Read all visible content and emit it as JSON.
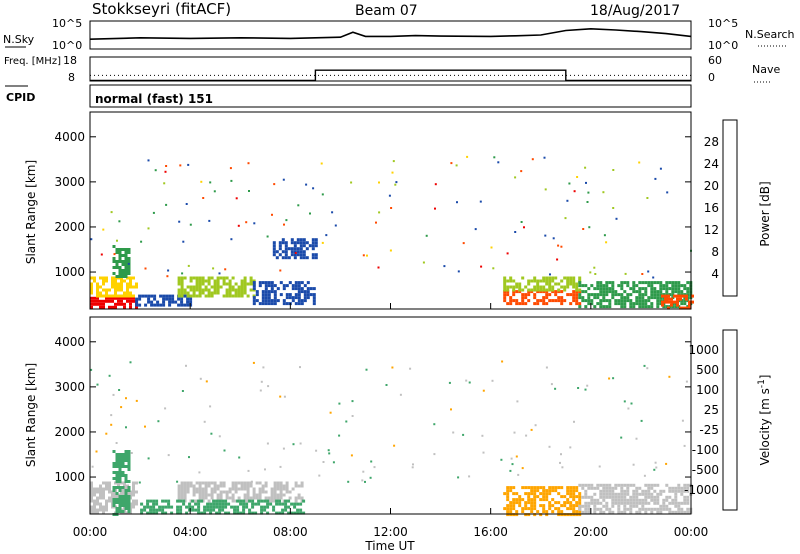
{
  "header": {
    "station": "Stokkseyri (fitACF)",
    "beam": "Beam 07",
    "date": "18/Aug/2017"
  },
  "chart_data": [
    {
      "type": "line",
      "name": "noise-panel",
      "left_label": "N.Sky",
      "right_label": "N.Search",
      "left_ticks": [
        "10^5",
        "10^0"
      ],
      "right_ticks": [
        "10^5",
        "10^0"
      ],
      "x": [
        "00:00",
        "02:00",
        "04:00",
        "06:00",
        "08:00",
        "09:00",
        "10:00",
        "10:30",
        "11:00",
        "12:00",
        "13:00",
        "14:00",
        "16:00",
        "17:00",
        "18:00",
        "19:00",
        "20:00",
        "21:00",
        "22:00",
        "23:00",
        "24:00"
      ],
      "series": [
        {
          "values": [
            0.35,
            0.4,
            0.38,
            0.4,
            0.38,
            0.4,
            0.42,
            0.6,
            0.45,
            0.45,
            0.48,
            0.46,
            0.45,
            0.47,
            0.5,
            0.66,
            0.72,
            0.68,
            0.62,
            0.55,
            0.45
          ]
        }
      ]
    },
    {
      "type": "line",
      "name": "frequency-panel",
      "left_label": "Freq. [MHz]",
      "right_label": "Nave",
      "left_ticks": [
        "18",
        "8"
      ],
      "right_ticks": [
        "60",
        "0"
      ],
      "x": [
        "00:00",
        "09:00",
        "09:00",
        "19:00",
        "19:00",
        "24:00"
      ],
      "series": [
        {
          "values": [
            8.2,
            8.2,
            12.5,
            12.5,
            8.2,
            8.2
          ]
        },
        {
          "values": [
            14,
            14,
            14,
            14,
            14,
            14
          ],
          "style": "dotted"
        }
      ]
    },
    {
      "type": "text",
      "name": "cpid-panel",
      "label": "CPID",
      "value": "normal (fast) 151"
    },
    {
      "type": "heatmap",
      "name": "power-panel",
      "ylabel": "Slant Range [km]",
      "yticks": [
        1000,
        2000,
        3000,
        4000
      ],
      "ylim": [
        180,
        4550
      ],
      "colorbar_label": "Power [dB]",
      "colorbar_ticks": [
        28,
        24,
        20,
        16,
        12,
        8,
        4
      ],
      "colorbar_colors": [
        "#ee0000",
        "#ff4a00",
        "#ff9a00",
        "#ffd200",
        "#a0c820",
        "#2e9a4a",
        "#1a4aaa",
        "#1010ee"
      ],
      "regions": [
        {
          "t0": 0.0,
          "t1": 1.8,
          "r0": 200,
          "r1": 450,
          "level": 28
        },
        {
          "t0": 0.0,
          "t1": 1.8,
          "r0": 450,
          "r1": 900,
          "level": 18
        },
        {
          "t0": 0.9,
          "t1": 1.5,
          "r0": 900,
          "r1": 1600,
          "level": 8
        },
        {
          "t0": 1.8,
          "t1": 4.0,
          "r0": 300,
          "r1": 500,
          "level": 6
        },
        {
          "t0": 3.5,
          "t1": 6.5,
          "r0": 500,
          "r1": 900,
          "level": 14
        },
        {
          "t0": 6.5,
          "t1": 9.0,
          "r0": 300,
          "r1": 800,
          "level": 6
        },
        {
          "t0": 7.3,
          "t1": 9.0,
          "r0": 1300,
          "r1": 1750,
          "level": 5
        },
        {
          "t0": 16.5,
          "t1": 19.5,
          "r0": 300,
          "r1": 600,
          "level": 26
        },
        {
          "t0": 16.5,
          "t1": 19.5,
          "r0": 600,
          "r1": 900,
          "level": 14
        },
        {
          "t0": 19.5,
          "t1": 24.0,
          "r0": 250,
          "r1": 800,
          "level": 8
        },
        {
          "t0": 22.8,
          "t1": 24.0,
          "r0": 200,
          "r1": 500,
          "level": 24
        }
      ]
    },
    {
      "type": "heatmap",
      "name": "velocity-panel",
      "ylabel": "Slant Range [km]",
      "yticks": [
        1000,
        2000,
        3000,
        4000
      ],
      "ylim": [
        180,
        4550
      ],
      "colorbar_label": "Velocity [m s^-1]",
      "colorbar_ticks": [
        1000,
        500,
        100,
        25,
        -25,
        -100,
        -500,
        -1000
      ],
      "colorbar_colors": [
        "#1a3fb0",
        "#2a6cc8",
        "#3ea66a",
        "#6cc84a",
        "#c0c0c0",
        "#f5d24a",
        "#ffa500",
        "#ff6a00",
        "#e00000"
      ],
      "regions": [
        {
          "t0": 0.0,
          "t1": 1.8,
          "r0": 200,
          "r1": 900,
          "value": 0
        },
        {
          "t0": 0.9,
          "t1": 1.6,
          "r0": 200,
          "r1": 1600,
          "value": 150
        },
        {
          "t0": 3.5,
          "t1": 8.5,
          "r0": 500,
          "r1": 900,
          "value": 0
        },
        {
          "t0": 2.0,
          "t1": 8.5,
          "r0": 200,
          "r1": 500,
          "value": 120
        },
        {
          "t0": 16.5,
          "t1": 19.5,
          "r0": 200,
          "r1": 800,
          "value": -150
        },
        {
          "t0": 19.5,
          "t1": 24.0,
          "r0": 200,
          "r1": 850,
          "value": 0
        }
      ]
    }
  ],
  "x_axis": {
    "ticks": [
      "00:00",
      "04:00",
      "08:00",
      "12:00",
      "16:00",
      "20:00",
      "00:00"
    ],
    "label": "Time UT",
    "xlim": [
      0,
      24
    ]
  }
}
